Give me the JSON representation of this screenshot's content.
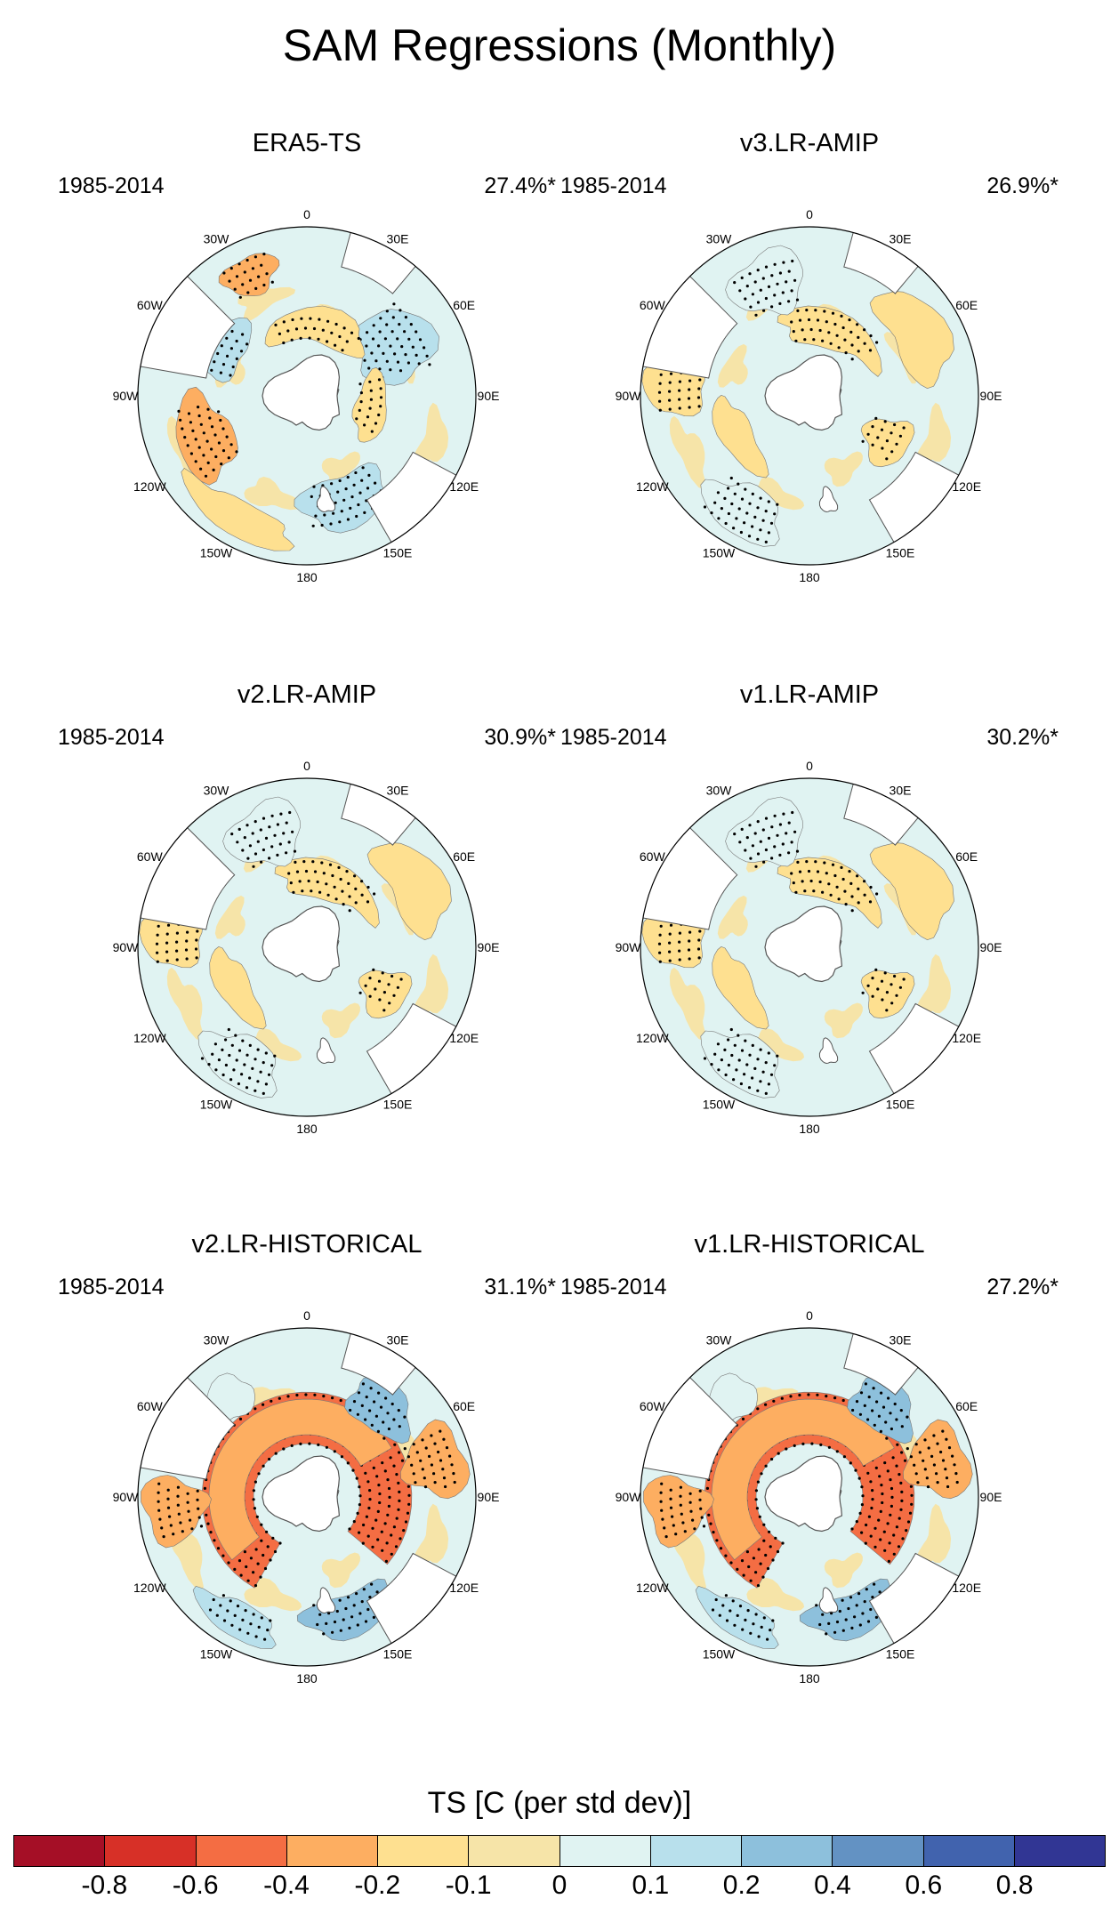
{
  "title": "SAM Regressions (Monthly)",
  "panels": [
    {
      "name": "ERA5-TS",
      "period": "1985-2014",
      "pct": "27.4%*",
      "pattern": "obs"
    },
    {
      "name": "v3.LR-AMIP",
      "period": "1985-2014",
      "pct": "26.9%*",
      "pattern": "weak"
    },
    {
      "name": "v2.LR-AMIP",
      "period": "1985-2014",
      "pct": "30.9%*",
      "pattern": "weak"
    },
    {
      "name": "v1.LR-AMIP",
      "period": "1985-2014",
      "pct": "30.2%*",
      "pattern": "weak"
    },
    {
      "name": "v2.LR-HISTORICAL",
      "period": "1985-2014",
      "pct": "31.1%*",
      "pattern": "strong"
    },
    {
      "name": "v1.LR-HISTORICAL",
      "period": "1985-2014",
      "pct": "27.2%*",
      "pattern": "strong"
    }
  ],
  "longitude_labels": [
    "0",
    "30E",
    "60E",
    "90E",
    "120E",
    "150E",
    "180",
    "150W",
    "120W",
    "90W",
    "60W",
    "30W"
  ],
  "colorbar": {
    "title": "TS [C (per std dev)]",
    "tick_labels": [
      "-0.8",
      "-0.6",
      "-0.4",
      "-0.2",
      "-0.1",
      "0",
      "0.1",
      "0.2",
      "0.4",
      "0.6",
      "0.8"
    ],
    "colors": [
      "#a50f26",
      "#d73027",
      "#f46d43",
      "#fdae61",
      "#fee090",
      "#f6e4a8",
      "#e0f3f2",
      "#b8e0ec",
      "#8dc0dc",
      "#6392c3",
      "#4163ae",
      "#313694"
    ]
  },
  "chart_data": {
    "type": "heatmap",
    "title": "SAM Regressions (Monthly)",
    "variable": "TS [C (per std dev)]",
    "period": "1985-2014",
    "contour_levels": [
      -0.8,
      -0.6,
      -0.4,
      -0.2,
      -0.1,
      0,
      0.1,
      0.2,
      0.4,
      0.6,
      0.8
    ],
    "panels": [
      "ERA5-TS",
      "v3.LR-AMIP",
      "v2.LR-AMIP",
      "v1.LR-AMIP",
      "v2.LR-HISTORICAL",
      "v1.LR-HISTORICAL"
    ],
    "explained_variance_pct": [
      27.4,
      26.9,
      30.9,
      30.2,
      31.1,
      27.2
    ]
  }
}
